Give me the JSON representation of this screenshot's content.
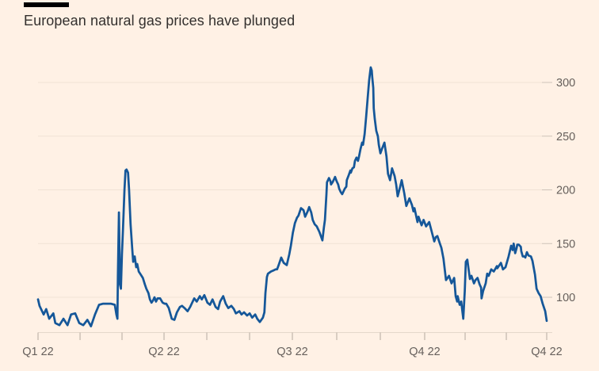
{
  "header": {
    "title": "European natural gas prices have plunged"
  },
  "colors": {
    "background": "#FFF1E5",
    "line": "#155799",
    "grid": "#F0E2D5",
    "grid_tick": "#CDC3B9",
    "axis": "#E5D8CB",
    "tick": "#B3A99F",
    "tick_label": "#66605C",
    "title": "#33302E",
    "accent_bar": "#000000"
  },
  "chart_data": {
    "type": "line",
    "title": "European natural gas prices have plunged",
    "xlabel": "",
    "ylabel": "",
    "grid": "horizontal",
    "legend": "none",
    "y_axis_side": "right",
    "y_ticks": [
      100,
      150,
      200,
      250,
      300
    ],
    "ylim": [
      65,
      320
    ],
    "x_tick_labels": [
      "Q1 22",
      "Q2 22",
      "Q3 22",
      "Q4 22",
      "Q4 22"
    ],
    "x_minor_tick_positions": [
      0,
      0.0826,
      0.1651,
      0.2477,
      0.3318,
      0.4159,
      0.5,
      0.5872,
      0.6729,
      0.7601,
      0.8396,
      0.9206,
      1.0
    ],
    "x_labeled_tick_indices": [
      0,
      3,
      6,
      9,
      12
    ],
    "series": [
      {
        "name": "European natural gas price",
        "color": "#155799",
        "points": [
          [
            0.0,
            98
          ],
          [
            0.003,
            92
          ],
          [
            0.011,
            84
          ],
          [
            0.016,
            89
          ],
          [
            0.022,
            80
          ],
          [
            0.03,
            85
          ],
          [
            0.034,
            76
          ],
          [
            0.042,
            74
          ],
          [
            0.05,
            80
          ],
          [
            0.058,
            74
          ],
          [
            0.065,
            84
          ],
          [
            0.073,
            85
          ],
          [
            0.081,
            76
          ],
          [
            0.089,
            74
          ],
          [
            0.097,
            79
          ],
          [
            0.104,
            73
          ],
          [
            0.112,
            84
          ],
          [
            0.12,
            93
          ],
          [
            0.128,
            94
          ],
          [
            0.143,
            94
          ],
          [
            0.151,
            93
          ],
          [
            0.154,
            84
          ],
          [
            0.156,
            80
          ],
          [
            0.157,
            120
          ],
          [
            0.159,
            179
          ],
          [
            0.161,
            112
          ],
          [
            0.163,
            108
          ],
          [
            0.165,
            140
          ],
          [
            0.167,
            163
          ],
          [
            0.17,
            200
          ],
          [
            0.172,
            218
          ],
          [
            0.174,
            219
          ],
          [
            0.177,
            216
          ],
          [
            0.179,
            200
          ],
          [
            0.182,
            168
          ],
          [
            0.185,
            146
          ],
          [
            0.187,
            133
          ],
          [
            0.19,
            138
          ],
          [
            0.193,
            128
          ],
          [
            0.195,
            131
          ],
          [
            0.198,
            124
          ],
          [
            0.202,
            121
          ],
          [
            0.206,
            118
          ],
          [
            0.21,
            112
          ],
          [
            0.213,
            108
          ],
          [
            0.217,
            104
          ],
          [
            0.22,
            98
          ],
          [
            0.223,
            95
          ],
          [
            0.226,
            97
          ],
          [
            0.229,
            100
          ],
          [
            0.232,
            96
          ],
          [
            0.235,
            99
          ],
          [
            0.24,
            99
          ],
          [
            0.245,
            95
          ],
          [
            0.249,
            94
          ],
          [
            0.252,
            94
          ],
          [
            0.257,
            90
          ],
          [
            0.263,
            80
          ],
          [
            0.268,
            79
          ],
          [
            0.273,
            86
          ],
          [
            0.279,
            91
          ],
          [
            0.283,
            92
          ],
          [
            0.288,
            90
          ],
          [
            0.294,
            87
          ],
          [
            0.299,
            91
          ],
          [
            0.307,
            99
          ],
          [
            0.312,
            96
          ],
          [
            0.318,
            101
          ],
          [
            0.322,
            98
          ],
          [
            0.327,
            102
          ],
          [
            0.333,
            95
          ],
          [
            0.338,
            93
          ],
          [
            0.343,
            98
          ],
          [
            0.349,
            91
          ],
          [
            0.354,
            89
          ],
          [
            0.358,
            96
          ],
          [
            0.364,
            101
          ],
          [
            0.369,
            94
          ],
          [
            0.374,
            90
          ],
          [
            0.38,
            92
          ],
          [
            0.385,
            89
          ],
          [
            0.389,
            85
          ],
          [
            0.396,
            87
          ],
          [
            0.4,
            84
          ],
          [
            0.405,
            86
          ],
          [
            0.411,
            83
          ],
          [
            0.416,
            85
          ],
          [
            0.421,
            81
          ],
          [
            0.427,
            84
          ],
          [
            0.431,
            80
          ],
          [
            0.436,
            77
          ],
          [
            0.442,
            81
          ],
          [
            0.445,
            86
          ],
          [
            0.447,
            104
          ],
          [
            0.45,
            119
          ],
          [
            0.452,
            122
          ],
          [
            0.458,
            124
          ],
          [
            0.463,
            125
          ],
          [
            0.467,
            126
          ],
          [
            0.47,
            126
          ],
          [
            0.473,
            130
          ],
          [
            0.478,
            137
          ],
          [
            0.481,
            134
          ],
          [
            0.483,
            132
          ],
          [
            0.489,
            130
          ],
          [
            0.494,
            140
          ],
          [
            0.497,
            148
          ],
          [
            0.501,
            160
          ],
          [
            0.505,
            169
          ],
          [
            0.509,
            174
          ],
          [
            0.512,
            176
          ],
          [
            0.517,
            183
          ],
          [
            0.522,
            181
          ],
          [
            0.525,
            175
          ],
          [
            0.53,
            180
          ],
          [
            0.533,
            184
          ],
          [
            0.537,
            179
          ],
          [
            0.54,
            172
          ],
          [
            0.544,
            168
          ],
          [
            0.548,
            166
          ],
          [
            0.553,
            161
          ],
          [
            0.556,
            157
          ],
          [
            0.559,
            153
          ],
          [
            0.562,
            165
          ],
          [
            0.564,
            172
          ],
          [
            0.567,
            196
          ],
          [
            0.568,
            207
          ],
          [
            0.572,
            211
          ],
          [
            0.575,
            208
          ],
          [
            0.576,
            205
          ],
          [
            0.579,
            207
          ],
          [
            0.583,
            211
          ],
          [
            0.584,
            212
          ],
          [
            0.587,
            208
          ],
          [
            0.59,
            205
          ],
          [
            0.592,
            201
          ],
          [
            0.595,
            198
          ],
          [
            0.598,
            196
          ],
          [
            0.603,
            201
          ],
          [
            0.606,
            203
          ],
          [
            0.607,
            209
          ],
          [
            0.611,
            214
          ],
          [
            0.614,
            218
          ],
          [
            0.615,
            216
          ],
          [
            0.618,
            220
          ],
          [
            0.621,
            221
          ],
          [
            0.623,
            227
          ],
          [
            0.626,
            230
          ],
          [
            0.629,
            227
          ],
          [
            0.631,
            231
          ],
          [
            0.634,
            238
          ],
          [
            0.637,
            244
          ],
          [
            0.639,
            242
          ],
          [
            0.642,
            252
          ],
          [
            0.645,
            268
          ],
          [
            0.648,
            285
          ],
          [
            0.651,
            302
          ],
          [
            0.653,
            310
          ],
          [
            0.654,
            314
          ],
          [
            0.656,
            311
          ],
          [
            0.657,
            305
          ],
          [
            0.659,
            295
          ],
          [
            0.66,
            276
          ],
          [
            0.662,
            266
          ],
          [
            0.665,
            255
          ],
          [
            0.668,
            250
          ],
          [
            0.67,
            242
          ],
          [
            0.673,
            234
          ],
          [
            0.676,
            238
          ],
          [
            0.681,
            244
          ],
          [
            0.685,
            231
          ],
          [
            0.688,
            215
          ],
          [
            0.692,
            209
          ],
          [
            0.696,
            220
          ],
          [
            0.701,
            213
          ],
          [
            0.704,
            205
          ],
          [
            0.707,
            194
          ],
          [
            0.712,
            203
          ],
          [
            0.715,
            209
          ],
          [
            0.72,
            197
          ],
          [
            0.724,
            185
          ],
          [
            0.73,
            192
          ],
          [
            0.735,
            186
          ],
          [
            0.738,
            180
          ],
          [
            0.74,
            183
          ],
          [
            0.746,
            170
          ],
          [
            0.748,
            175
          ],
          [
            0.754,
            167
          ],
          [
            0.758,
            172
          ],
          [
            0.763,
            166
          ],
          [
            0.769,
            170
          ],
          [
            0.774,
            161
          ],
          [
            0.779,
            152
          ],
          [
            0.782,
            156
          ],
          [
            0.785,
            157
          ],
          [
            0.79,
            150
          ],
          [
            0.793,
            146
          ],
          [
            0.797,
            136
          ],
          [
            0.802,
            116
          ],
          [
            0.808,
            120
          ],
          [
            0.813,
            113
          ],
          [
            0.818,
            118
          ],
          [
            0.821,
            101
          ],
          [
            0.824,
            96
          ],
          [
            0.825,
            101
          ],
          [
            0.829,
            93
          ],
          [
            0.832,
            96
          ],
          [
            0.836,
            80
          ],
          [
            0.839,
            106
          ],
          [
            0.841,
            133
          ],
          [
            0.844,
            135
          ],
          [
            0.847,
            124
          ],
          [
            0.849,
            117
          ],
          [
            0.852,
            120
          ],
          [
            0.857,
            113
          ],
          [
            0.86,
            116
          ],
          [
            0.864,
            118
          ],
          [
            0.868,
            112
          ],
          [
            0.871,
            109
          ],
          [
            0.872,
            99
          ],
          [
            0.875,
            106
          ],
          [
            0.88,
            113
          ],
          [
            0.883,
            122
          ],
          [
            0.886,
            120
          ],
          [
            0.891,
            126
          ],
          [
            0.896,
            124
          ],
          [
            0.902,
            129
          ],
          [
            0.903,
            127
          ],
          [
            0.91,
            132
          ],
          [
            0.914,
            126
          ],
          [
            0.919,
            128
          ],
          [
            0.925,
            138
          ],
          [
            0.93,
            148
          ],
          [
            0.933,
            144
          ],
          [
            0.935,
            150
          ],
          [
            0.938,
            141
          ],
          [
            0.941,
            146
          ],
          [
            0.942,
            149
          ],
          [
            0.945,
            149
          ],
          [
            0.949,
            147
          ],
          [
            0.95,
            143
          ],
          [
            0.953,
            138
          ],
          [
            0.956,
            138
          ],
          [
            0.958,
            137
          ],
          [
            0.961,
            142
          ],
          [
            0.964,
            139
          ],
          [
            0.969,
            138
          ],
          [
            0.972,
            134
          ],
          [
            0.977,
            121
          ],
          [
            0.98,
            108
          ],
          [
            0.984,
            104
          ],
          [
            0.988,
            101
          ],
          [
            0.992,
            94
          ],
          [
            0.997,
            87
          ],
          [
            1.0,
            78
          ]
        ]
      }
    ]
  }
}
